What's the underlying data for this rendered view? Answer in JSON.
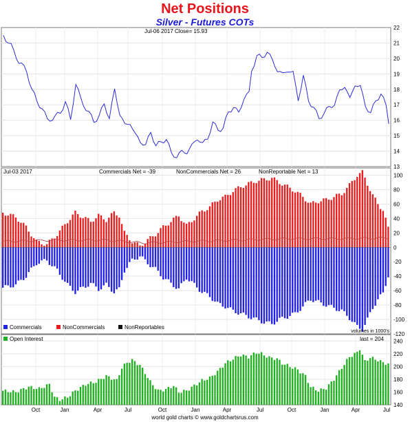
{
  "title": "Net Positions",
  "subtitle": "Silver - Futures COTs",
  "footer": "world gold charts © www.goldchartsrus.com",
  "colors": {
    "title": "#e8141b",
    "subtitle": "#1a1adc",
    "price_line": "#2b2bd6",
    "commercials": "#1f1fe6",
    "noncommercials": "#e81c1c",
    "nonreportables": "#111111",
    "open_interest": "#1eb01e",
    "nonreportable_line": "#b84a4a"
  },
  "x_axis": {
    "tick_labels": [
      "Oct",
      "Jan",
      "Apr",
      "Jul",
      "Oct",
      "Jan",
      "Apr",
      "Jul",
      "Oct",
      "Jan",
      "Apr",
      "Jul"
    ]
  },
  "chart_data": [
    {
      "type": "line",
      "name": "price",
      "header_left": "Jul-06  2017   Close= 15.93",
      "ylim": [
        13,
        22
      ],
      "yticks": [
        13,
        14,
        15,
        16,
        17,
        18,
        19,
        20,
        21,
        22
      ],
      "grid": true,
      "n_points": 150,
      "anchors": [
        [
          0,
          21.5
        ],
        [
          3,
          20.8
        ],
        [
          6,
          19.8
        ],
        [
          9,
          19.2
        ],
        [
          11,
          18.0
        ],
        [
          13,
          17.2
        ],
        [
          15,
          16.8
        ],
        [
          17,
          16.0
        ],
        [
          20,
          16.2
        ],
        [
          22,
          16.5
        ],
        [
          24,
          17.2
        ],
        [
          26,
          16.0
        ],
        [
          28,
          18.4
        ],
        [
          30,
          17.3
        ],
        [
          33,
          16.5
        ],
        [
          35,
          15.9
        ],
        [
          37,
          16.3
        ],
        [
          39,
          17.0
        ],
        [
          41,
          16.2
        ],
        [
          43,
          17.9
        ],
        [
          45,
          16.5
        ],
        [
          47,
          15.6
        ],
        [
          49,
          15.9
        ],
        [
          51,
          15.0
        ],
        [
          53,
          14.7
        ],
        [
          55,
          14.3
        ],
        [
          57,
          15.3
        ],
        [
          59,
          14.3
        ],
        [
          61,
          14.6
        ],
        [
          63,
          14.8
        ],
        [
          65,
          13.8
        ],
        [
          67,
          13.7
        ],
        [
          69,
          13.9
        ],
        [
          71,
          14.0
        ],
        [
          73,
          14.3
        ],
        [
          75,
          14.9
        ],
        [
          77,
          14.4
        ],
        [
          79,
          14.9
        ],
        [
          81,
          15.8
        ],
        [
          83,
          15.4
        ],
        [
          85,
          15.5
        ],
        [
          87,
          16.5
        ],
        [
          89,
          16.9
        ],
        [
          91,
          16.4
        ],
        [
          93,
          17.5
        ],
        [
          95,
          17.7
        ],
        [
          96,
          19.2
        ],
        [
          98,
          20.2
        ],
        [
          100,
          20.0
        ],
        [
          102,
          20.5
        ],
        [
          104,
          19.8
        ],
        [
          106,
          19.3
        ],
        [
          108,
          18.9
        ],
        [
          110,
          19.3
        ],
        [
          112,
          19.0
        ],
        [
          114,
          17.4
        ],
        [
          116,
          18.8
        ],
        [
          118,
          17.3
        ],
        [
          120,
          16.8
        ],
        [
          122,
          16.1
        ],
        [
          124,
          16.5
        ],
        [
          126,
          16.8
        ],
        [
          128,
          17.1
        ],
        [
          130,
          17.8
        ],
        [
          132,
          18.3
        ],
        [
          134,
          17.3
        ],
        [
          136,
          18.4
        ],
        [
          138,
          18.1
        ],
        [
          140,
          17.0
        ],
        [
          142,
          16.4
        ],
        [
          144,
          17.3
        ],
        [
          146,
          17.7
        ],
        [
          148,
          16.9
        ],
        [
          149,
          15.93
        ]
      ]
    },
    {
      "type": "bar",
      "name": "net_positions",
      "header_left": "Jul-03  2017",
      "header_commercials": "Commercials Net = -39",
      "header_noncommercials": "NonCommercials Net = 26",
      "header_nonreportables": "NonReportable Net = 13",
      "ylim": [
        -120,
        110
      ],
      "yticks": [
        -120,
        -100,
        -80,
        -60,
        -40,
        -20,
        0,
        20,
        40,
        60,
        80,
        100
      ],
      "grid": true,
      "n_points": 150,
      "unit_note": "volumes in 1000's",
      "legend": [
        "Commercials",
        "NonCommercials",
        "NonReportables"
      ],
      "commercials_anchors": [
        [
          0,
          -56
        ],
        [
          5,
          -52
        ],
        [
          9,
          -40
        ],
        [
          13,
          -22
        ],
        [
          17,
          -18
        ],
        [
          21,
          -32
        ],
        [
          25,
          -52
        ],
        [
          28,
          -62
        ],
        [
          31,
          -56
        ],
        [
          34,
          -50
        ],
        [
          37,
          -58
        ],
        [
          40,
          -52
        ],
        [
          43,
          -62
        ],
        [
          45,
          -58
        ],
        [
          47,
          -32
        ],
        [
          50,
          -18
        ],
        [
          53,
          -12
        ],
        [
          56,
          -22
        ],
        [
          59,
          -30
        ],
        [
          62,
          -42
        ],
        [
          65,
          -50
        ],
        [
          68,
          -58
        ],
        [
          71,
          -42
        ],
        [
          74,
          -52
        ],
        [
          77,
          -62
        ],
        [
          80,
          -68
        ],
        [
          83,
          -78
        ],
        [
          86,
          -82
        ],
        [
          89,
          -88
        ],
        [
          92,
          -92
        ],
        [
          95,
          -96
        ],
        [
          98,
          -100
        ],
        [
          101,
          -104
        ],
        [
          104,
          -106
        ],
        [
          107,
          -100
        ],
        [
          110,
          -96
        ],
        [
          113,
          -92
        ],
        [
          116,
          -82
        ],
        [
          119,
          -72
        ],
        [
          122,
          -76
        ],
        [
          125,
          -80
        ],
        [
          128,
          -84
        ],
        [
          131,
          -88
        ],
        [
          134,
          -98
        ],
        [
          137,
          -110
        ],
        [
          139,
          -114
        ],
        [
          141,
          -100
        ],
        [
          143,
          -84
        ],
        [
          145,
          -72
        ],
        [
          147,
          -64
        ],
        [
          149,
          -39
        ]
      ],
      "noncommercials_anchors": [
        [
          0,
          48
        ],
        [
          5,
          42
        ],
        [
          9,
          28
        ],
        [
          13,
          8
        ],
        [
          17,
          4
        ],
        [
          21,
          18
        ],
        [
          25,
          36
        ],
        [
          28,
          48
        ],
        [
          31,
          42
        ],
        [
          34,
          36
        ],
        [
          37,
          44
        ],
        [
          40,
          38
        ],
        [
          43,
          48
        ],
        [
          45,
          44
        ],
        [
          47,
          20
        ],
        [
          50,
          8
        ],
        [
          53,
          2
        ],
        [
          56,
          10
        ],
        [
          59,
          18
        ],
        [
          62,
          28
        ],
        [
          65,
          36
        ],
        [
          68,
          44
        ],
        [
          71,
          30
        ],
        [
          74,
          40
        ],
        [
          77,
          50
        ],
        [
          80,
          56
        ],
        [
          83,
          66
        ],
        [
          86,
          70
        ],
        [
          89,
          78
        ],
        [
          92,
          84
        ],
        [
          95,
          88
        ],
        [
          98,
          92
        ],
        [
          101,
          94
        ],
        [
          104,
          96
        ],
        [
          107,
          90
        ],
        [
          110,
          84
        ],
        [
          113,
          78
        ],
        [
          116,
          70
        ],
        [
          119,
          60
        ],
        [
          122,
          64
        ],
        [
          125,
          66
        ],
        [
          128,
          70
        ],
        [
          131,
          74
        ],
        [
          134,
          86
        ],
        [
          137,
          100
        ],
        [
          139,
          104
        ],
        [
          141,
          88
        ],
        [
          143,
          72
        ],
        [
          145,
          60
        ],
        [
          147,
          52
        ],
        [
          149,
          26
        ]
      ],
      "nonreportables_anchors": [
        [
          0,
          8
        ],
        [
          20,
          10
        ],
        [
          40,
          10
        ],
        [
          55,
          6
        ],
        [
          70,
          8
        ],
        [
          90,
          10
        ],
        [
          110,
          12
        ],
        [
          130,
          12
        ],
        [
          149,
          13
        ]
      ]
    },
    {
      "type": "bar",
      "name": "open_interest",
      "legend": "Open Interest",
      "header_right": "last = 204",
      "ylim": [
        140,
        250
      ],
      "yticks": [
        140,
        160,
        180,
        200,
        220,
        240
      ],
      "grid": true,
      "n_points": 150,
      "anchors": [
        [
          0,
          162
        ],
        [
          5,
          160
        ],
        [
          10,
          168
        ],
        [
          14,
          165
        ],
        [
          18,
          172
        ],
        [
          20,
          152
        ],
        [
          22,
          148
        ],
        [
          25,
          152
        ],
        [
          28,
          162
        ],
        [
          32,
          172
        ],
        [
          36,
          176
        ],
        [
          40,
          185
        ],
        [
          44,
          178
        ],
        [
          46,
          198
        ],
        [
          48,
          206
        ],
        [
          50,
          210
        ],
        [
          53,
          202
        ],
        [
          55,
          190
        ],
        [
          57,
          176
        ],
        [
          60,
          162
        ],
        [
          63,
          164
        ],
        [
          66,
          170
        ],
        [
          68,
          160
        ],
        [
          71,
          162
        ],
        [
          74,
          170
        ],
        [
          77,
          178
        ],
        [
          80,
          182
        ],
        [
          83,
          192
        ],
        [
          86,
          205
        ],
        [
          89,
          212
        ],
        [
          92,
          218
        ],
        [
          95,
          215
        ],
        [
          98,
          222
        ],
        [
          100,
          220
        ],
        [
          103,
          214
        ],
        [
          106,
          212
        ],
        [
          108,
          205
        ],
        [
          111,
          200
        ],
        [
          114,
          195
        ],
        [
          117,
          185
        ],
        [
          119,
          168
        ],
        [
          122,
          162
        ],
        [
          125,
          166
        ],
        [
          128,
          180
        ],
        [
          131,
          198
        ],
        [
          134,
          215
        ],
        [
          137,
          222
        ],
        [
          138,
          228
        ],
        [
          140,
          208
        ],
        [
          142,
          214
        ],
        [
          145,
          210
        ],
        [
          147,
          206
        ],
        [
          149,
          204
        ]
      ]
    }
  ]
}
